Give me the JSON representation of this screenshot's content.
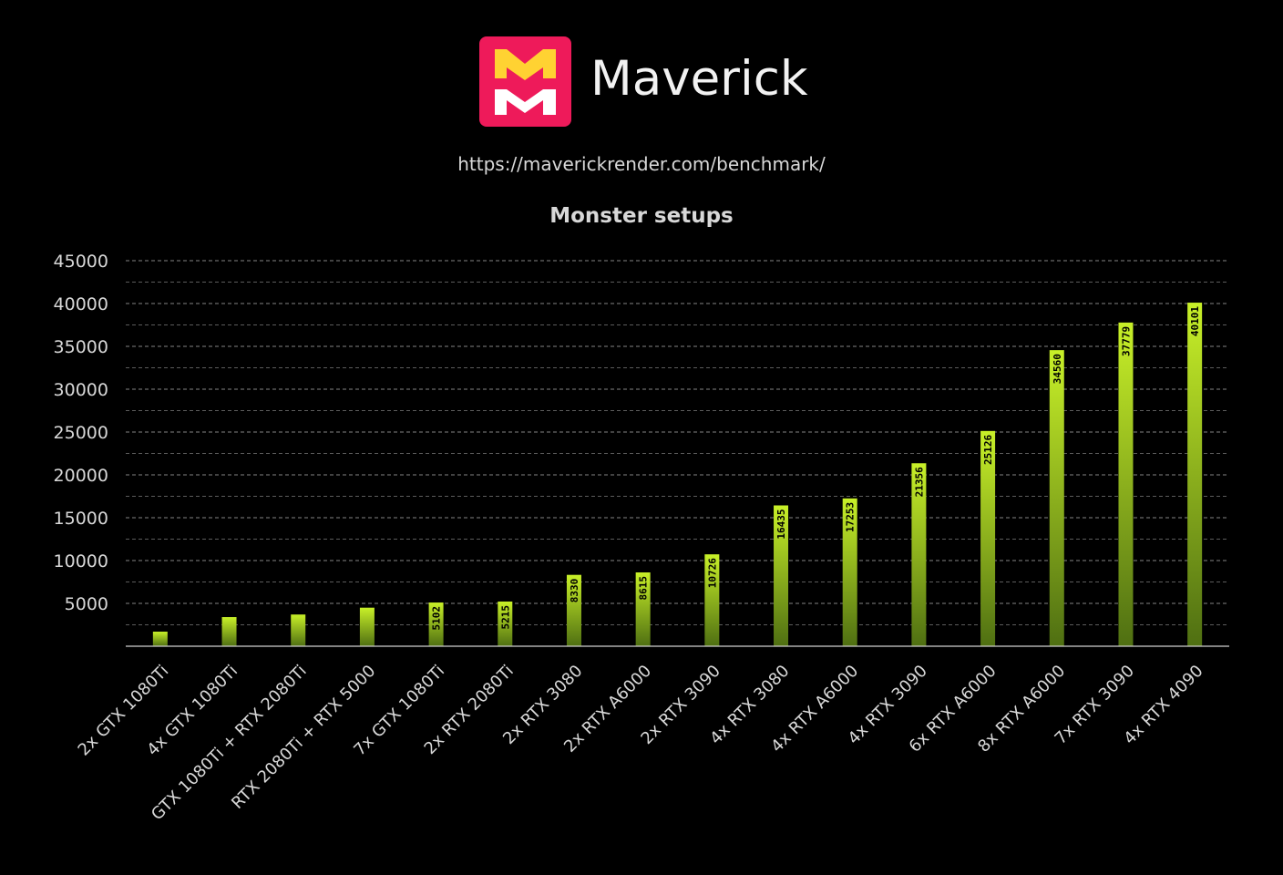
{
  "header": {
    "brand_name": "Maverick",
    "url": "https://maverickrender.com/benchmark/"
  },
  "logo": {
    "icon_name": "maverick-logo-icon",
    "bg_color": "#ee1a5a",
    "mark_color": "#ffd232"
  },
  "colors": {
    "background": "#000000",
    "bar_top": "#c8f028",
    "bar_bottom": "#4f6f12",
    "grid": "#9a9a9a",
    "text": "#d8d8d8",
    "value_label": "#000000"
  },
  "chart_data": {
    "type": "bar",
    "title": "Monster setups",
    "xlabel": "",
    "ylabel": "",
    "ylim": [
      0,
      45000
    ],
    "yticks": [
      5000,
      10000,
      15000,
      20000,
      25000,
      30000,
      35000,
      40000,
      45000
    ],
    "grid": true,
    "legend": "none",
    "categories": [
      "2x GTX 1080Ti",
      "4x GTX 1080Ti",
      "GTX 1080Ti + RTX 2080Ti",
      "RTX 2080Ti + RTX 5000",
      "7x GTX 1080Ti",
      "2x RTX 2080Ti",
      "2x RTX 3080",
      "2x RTX A6000",
      "2x RTX 3090",
      "4x RTX 3080",
      "4x RTX A6000",
      "4x RTX 3090",
      "6x RTX A6000",
      "8x RTX A6000",
      "7x RTX 3090",
      "4x RTX 4090"
    ],
    "values": [
      1700,
      3400,
      3700,
      4500,
      5102,
      5215,
      8330,
      8615,
      10726,
      16435,
      17253,
      21356,
      25126,
      34560,
      37779,
      40101
    ],
    "data_labels": [
      "",
      "",
      "",
      "",
      "5102",
      "5215",
      "8330",
      "8615",
      "10726",
      "16435",
      "17253",
      "21356",
      "25126",
      "34560",
      "37779",
      "40101"
    ]
  }
}
